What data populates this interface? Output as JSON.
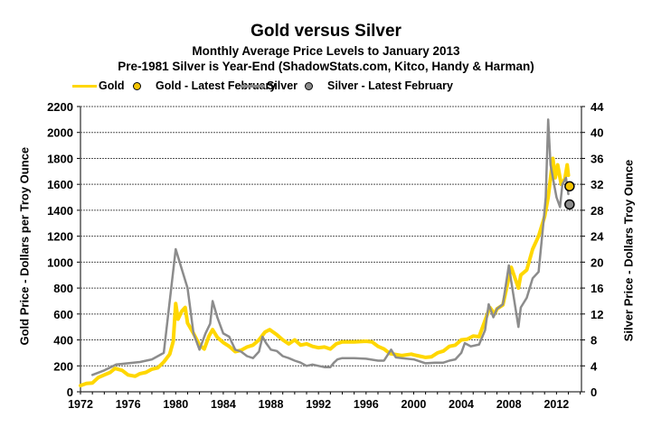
{
  "chart_data": {
    "type": "line",
    "title": "Gold versus Silver",
    "subtitle": "Monthly Average Price Levels to January 2013",
    "subtitle2": "Pre-1981 Silver is Year-End (ShadowStats.com, Kitco, Handy & Harman)",
    "xlabel": "",
    "ylabel": "Gold Price - Dollars per Troy Ounce",
    "y2label": "Silver Price - Dollars Troy Ounce",
    "xlim": [
      1972,
      2014.1
    ],
    "ylim": [
      0,
      2200
    ],
    "y2lim": [
      0,
      44
    ],
    "x_ticks": [
      "1972",
      "1976",
      "1980",
      "1984",
      "1988",
      "1992",
      "1996",
      "2000",
      "2004",
      "2008",
      "2012"
    ],
    "y_ticks": [
      "0",
      "200",
      "400",
      "600",
      "800",
      "1000",
      "1200",
      "1400",
      "1600",
      "1800",
      "2000",
      "2200"
    ],
    "y2_ticks": [
      "0",
      "4",
      "8",
      "12",
      "16",
      "20",
      "24",
      "28",
      "32",
      "36",
      "40",
      "44"
    ],
    "grid": true,
    "legend_position": "top",
    "legend": [
      {
        "label": "Gold",
        "kind": "line",
        "color": "#FFD700"
      },
      {
        "label": "Gold - Latest February",
        "kind": "dot",
        "color": "#F5C400"
      },
      {
        "label": "Silver",
        "kind": "line",
        "color": "#8C8C8C"
      },
      {
        "label": "Silver - Latest February",
        "kind": "dot",
        "color": "#8C8C8C"
      }
    ],
    "series": [
      {
        "name": "Gold",
        "axis": "left",
        "color": "#FFD700",
        "x": [
          1972.0,
          1972.5,
          1973.0,
          1973.5,
          1974.0,
          1974.5,
          1974.9,
          1975.5,
          1976.0,
          1976.6,
          1977.0,
          1977.5,
          1978.0,
          1978.5,
          1979.0,
          1979.5,
          1979.8,
          1980.0,
          1980.2,
          1980.5,
          1980.8,
          1981.0,
          1981.5,
          1982.0,
          1982.4,
          1982.8,
          1983.1,
          1983.5,
          1984.0,
          1984.5,
          1985.0,
          1985.5,
          1986.0,
          1986.5,
          1987.0,
          1987.5,
          1987.9,
          1988.5,
          1989.0,
          1989.5,
          1990.0,
          1990.5,
          1991.0,
          1991.5,
          1992.0,
          1992.5,
          1993.0,
          1993.5,
          1994.0,
          1995.0,
          1996.0,
          1996.5,
          1997.0,
          1997.5,
          1998.0,
          1999.0,
          1999.8,
          2000.0,
          2000.5,
          2001.0,
          2001.5,
          2002.0,
          2002.5,
          2003.0,
          2003.5,
          2004.0,
          2004.5,
          2005.0,
          2005.5,
          2006.0,
          2006.4,
          2006.8,
          2007.0,
          2007.5,
          2008.0,
          2008.2,
          2008.8,
          2009.0,
          2009.5,
          2010.0,
          2010.5,
          2011.0,
          2011.3,
          2011.7,
          2011.9,
          2012.1,
          2012.4,
          2012.7,
          2012.9,
          2013.0
        ],
        "values": [
          48,
          65,
          68,
          110,
          130,
          150,
          180,
          165,
          130,
          120,
          140,
          150,
          175,
          185,
          230,
          290,
          390,
          680,
          560,
          620,
          650,
          530,
          450,
          360,
          330,
          430,
          480,
          420,
          380,
          350,
          310,
          320,
          345,
          360,
          400,
          460,
          480,
          440,
          400,
          370,
          400,
          360,
          370,
          350,
          340,
          345,
          330,
          370,
          385,
          385,
          390,
          385,
          350,
          330,
          295,
          280,
          290,
          285,
          275,
          265,
          270,
          300,
          315,
          350,
          360,
          400,
          405,
          430,
          425,
          550,
          650,
          600,
          640,
          670,
          880,
          960,
          800,
          900,
          940,
          1100,
          1200,
          1350,
          1500,
          1800,
          1650,
          1750,
          1600,
          1640,
          1750,
          1670
        ]
      },
      {
        "name": "Silver",
        "axis": "right",
        "color": "#8C8C8C",
        "x": [
          1973.0,
          1974.0,
          1975.0,
          1976.0,
          1977.0,
          1978.0,
          1979.0,
          1980.0,
          1981.0,
          1981.5,
          1982.0,
          1982.5,
          1982.9,
          1983.1,
          1983.5,
          1984.0,
          1984.5,
          1985.0,
          1985.5,
          1986.0,
          1986.5,
          1987.0,
          1987.3,
          1987.6,
          1988.0,
          1988.5,
          1989.0,
          1989.5,
          1990.0,
          1990.5,
          1991.0,
          1991.5,
          1992.0,
          1992.5,
          1993.0,
          1993.3,
          1993.6,
          1994.0,
          1995.0,
          1996.0,
          1997.0,
          1997.5,
          1998.1,
          1998.5,
          1999.0,
          2000.0,
          2001.0,
          2001.8,
          2002.5,
          2003.0,
          2003.5,
          2004.0,
          2004.3,
          2004.8,
          2005.5,
          2006.0,
          2006.3,
          2006.7,
          2007.0,
          2007.5,
          2008.0,
          2008.2,
          2008.8,
          2009.0,
          2009.5,
          2010.0,
          2010.5,
          2010.9,
          2011.1,
          2011.3,
          2011.5,
          2011.8,
          2012.0,
          2012.3,
          2012.5,
          2012.8,
          2013.0
        ],
        "values": [
          2.6,
          3.3,
          4.2,
          4.4,
          4.6,
          5.0,
          6.0,
          22.0,
          16.0,
          9.0,
          6.5,
          9.0,
          10.5,
          14.0,
          11.5,
          9.0,
          8.5,
          6.5,
          6.2,
          5.5,
          5.2,
          6.2,
          8.5,
          7.5,
          6.5,
          6.3,
          5.5,
          5.2,
          4.8,
          4.5,
          4.0,
          4.2,
          4.0,
          3.8,
          3.8,
          4.5,
          5.0,
          5.2,
          5.2,
          5.1,
          4.8,
          4.8,
          6.5,
          5.3,
          5.2,
          5.0,
          4.4,
          4.5,
          4.5,
          4.8,
          5.0,
          6.0,
          7.5,
          7.0,
          7.3,
          9.5,
          13.5,
          11.5,
          12.8,
          13.5,
          19.5,
          17.0,
          10.0,
          13.0,
          14.5,
          17.5,
          18.5,
          26.0,
          30.0,
          42.0,
          35.0,
          32.0,
          30.0,
          28.5,
          32.0,
          33.0,
          30.5
        ]
      }
    ],
    "latest_points": [
      {
        "name": "Gold - Latest February",
        "axis": "left",
        "x": 2013.1,
        "value": 1585,
        "color": "#F5C400"
      },
      {
        "name": "Silver - Latest February",
        "axis": "right",
        "x": 2013.1,
        "value": 28.9,
        "color": "#8C8C8C"
      }
    ]
  }
}
